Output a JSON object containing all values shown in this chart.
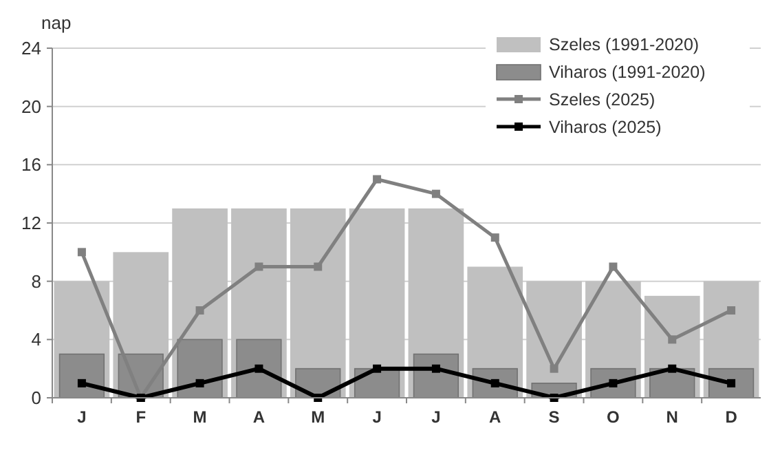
{
  "chart_data": {
    "type": "bar",
    "ylabel": "nap",
    "categories": [
      "J",
      "F",
      "M",
      "A",
      "M",
      "J",
      "J",
      "A",
      "S",
      "O",
      "N",
      "D"
    ],
    "series": [
      {
        "name": "Szeles (1991-2020)",
        "color": "#c0c0c0",
        "values": [
          8,
          10,
          13,
          13,
          13,
          13,
          13,
          9,
          8,
          8,
          7,
          8
        ]
      },
      {
        "name": "Viharos (1991-2020)",
        "color": "#8c8c8c",
        "values": [
          3,
          3,
          4,
          4,
          2,
          2,
          3,
          2,
          1,
          2,
          2,
          2
        ]
      },
      {
        "name": "Szeles (2025)",
        "type": "line",
        "color": "#808080",
        "values": [
          10,
          0,
          6,
          9,
          9,
          15,
          14,
          11,
          2,
          9,
          4,
          6
        ]
      },
      {
        "name": "Viharos (2025)",
        "type": "line",
        "color": "#000000",
        "values": [
          1,
          0,
          1,
          2,
          0,
          2,
          2,
          1,
          0,
          1,
          2,
          1
        ]
      }
    ],
    "ylim": [
      0,
      24
    ],
    "yticks": [
      0,
      4,
      8,
      12,
      16,
      20,
      24
    ],
    "grid": "y",
    "legend": "top right",
    "marker": "square"
  }
}
